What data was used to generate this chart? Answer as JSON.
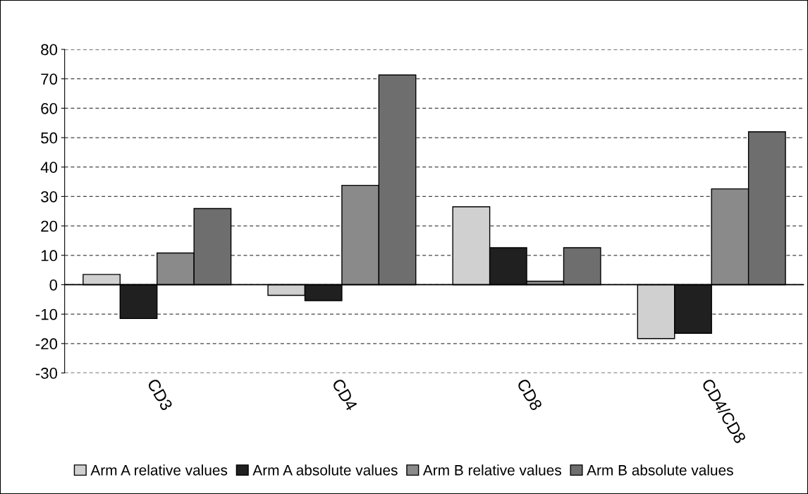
{
  "chart_data": {
    "type": "bar",
    "categories": [
      "CD3",
      "CD4",
      "CD8",
      "CD4/CD8"
    ],
    "series": [
      {
        "name": "Arm A relative values",
        "color": "#d0d0d0",
        "values": [
          3.5,
          -3.6,
          26.5,
          -18.3
        ]
      },
      {
        "name": "Arm A absolute values",
        "color": "#202020",
        "values": [
          -11.5,
          -5.4,
          12.6,
          -16.5
        ]
      },
      {
        "name": "Arm B relative values",
        "color": "#8a8a8a",
        "values": [
          10.8,
          33.8,
          1.2,
          32.6
        ]
      },
      {
        "name": "Arm B absolute values",
        "color": "#6e6e6e",
        "values": [
          25.9,
          71.3,
          12.6,
          52.0
        ]
      }
    ],
    "ylim": [
      -30,
      80
    ],
    "yticks": [
      -30,
      -20,
      -10,
      0,
      10,
      20,
      30,
      40,
      50,
      60,
      70,
      80
    ],
    "grid": "y",
    "legend": "bottom"
  }
}
